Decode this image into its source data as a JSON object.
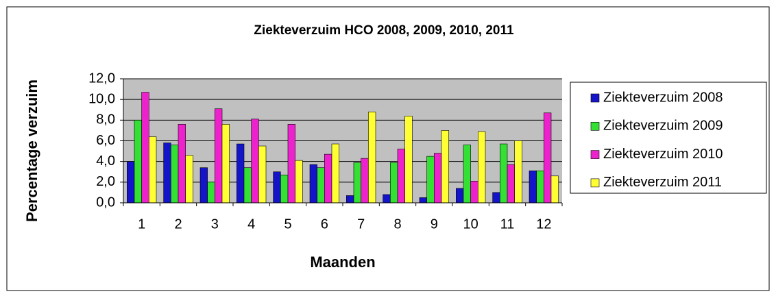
{
  "chart_data": {
    "type": "bar",
    "title": "Ziekteverzuim HCO 2008, 2009, 2010, 2011",
    "x_label": "Maanden",
    "y_label": "Percentage verzuim",
    "categories": [
      "1",
      "2",
      "3",
      "4",
      "5",
      "6",
      "7",
      "8",
      "9",
      "10",
      "11",
      "12"
    ],
    "series": [
      {
        "name": "Ziekteverzuim 2008",
        "color": "#1414c8",
        "values": [
          4.0,
          5.8,
          3.4,
          5.7,
          3.0,
          3.7,
          0.7,
          0.8,
          0.5,
          1.4,
          1.0,
          3.1
        ]
      },
      {
        "name": "Ziekteverzuim 2009",
        "color": "#33e033",
        "values": [
          8.0,
          5.6,
          2.0,
          3.4,
          2.7,
          3.4,
          3.9,
          3.9,
          4.5,
          5.6,
          5.7,
          3.1
        ]
      },
      {
        "name": "Ziekteverzuim 2010",
        "color": "#ee22cc",
        "values": [
          10.7,
          7.6,
          9.1,
          8.1,
          7.6,
          4.7,
          4.3,
          5.2,
          4.8,
          2.1,
          3.7,
          8.7
        ]
      },
      {
        "name": "Ziekteverzuim 2011",
        "color": "#ffff33",
        "values": [
          6.4,
          4.6,
          7.6,
          5.5,
          4.1,
          5.7,
          8.8,
          8.4,
          7.0,
          6.9,
          6.0,
          2.6
        ]
      }
    ],
    "ylim": [
      0,
      12
    ],
    "yticks": [
      {
        "value": 0,
        "label": "0,0"
      },
      {
        "value": 2,
        "label": "2,0"
      },
      {
        "value": 4,
        "label": "4,0"
      },
      {
        "value": 6,
        "label": "6,0"
      },
      {
        "value": 8,
        "label": "8,0"
      },
      {
        "value": 10,
        "label": "10,0"
      },
      {
        "value": 12,
        "label": "12,0"
      }
    ],
    "grid": true,
    "legend": "right"
  }
}
